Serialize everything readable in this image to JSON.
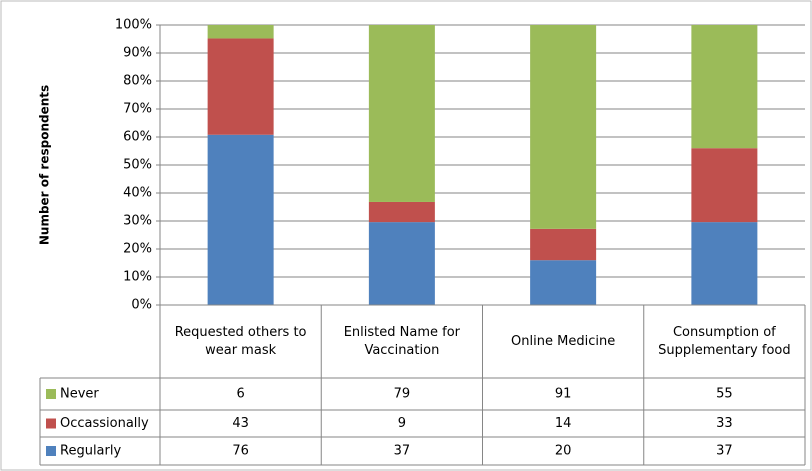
{
  "chart_data": {
    "type": "stacked_percent_bar",
    "y_label": "Number of respondents",
    "categories": [
      "Requested others to wear mask",
      "Enlisted Name for Vaccination",
      "Online Medicine",
      "Consumption of Supplementary food"
    ],
    "series": [
      {
        "name": "Never",
        "color": "#9bbb59",
        "values": [
          6,
          79,
          91,
          55
        ]
      },
      {
        "name": "Occassionally",
        "color": "#c0504d",
        "values": [
          43,
          9,
          14,
          33
        ]
      },
      {
        "name": "Regularly",
        "color": "#4f81bd",
        "values": [
          76,
          37,
          20,
          37
        ]
      }
    ],
    "ylim": [
      0,
      100
    ],
    "yticks": [
      {
        "value": 0,
        "label": "0%"
      },
      {
        "value": 10,
        "label": "10%"
      },
      {
        "value": 20,
        "label": "20%"
      },
      {
        "value": 30,
        "label": "30%"
      },
      {
        "value": 40,
        "label": "40%"
      },
      {
        "value": 50,
        "label": "50%"
      },
      {
        "value": 60,
        "label": "60%"
      },
      {
        "value": 70,
        "label": "70%"
      },
      {
        "value": 80,
        "label": "80%"
      },
      {
        "value": 90,
        "label": "90%"
      },
      {
        "value": 100,
        "label": "100%"
      }
    ],
    "grid": true
  }
}
